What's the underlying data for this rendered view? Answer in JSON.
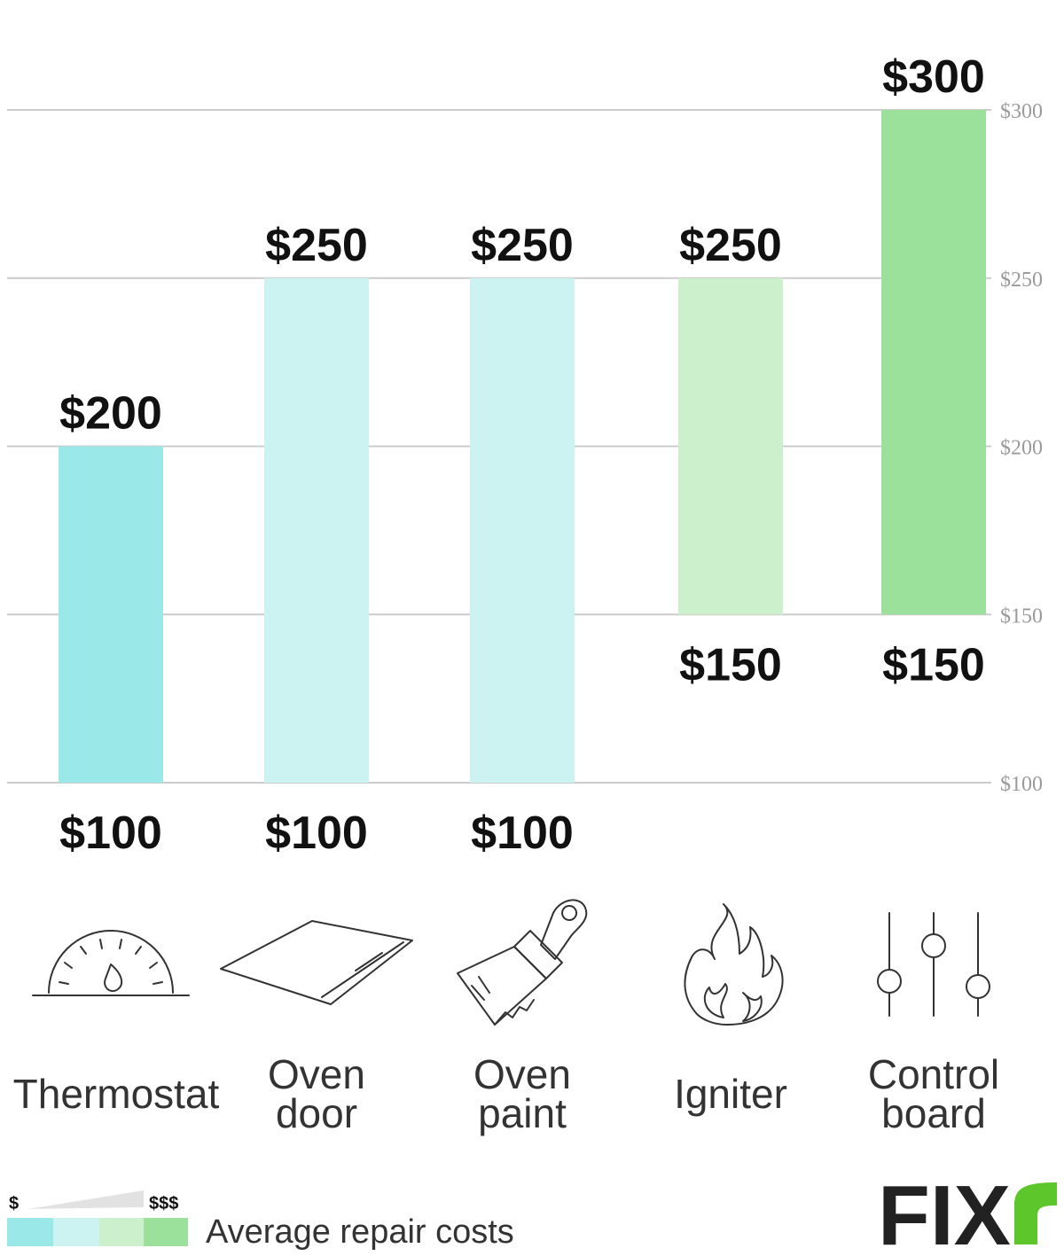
{
  "chart_data": {
    "type": "bar",
    "title": "",
    "xlabel": "",
    "ylabel": "",
    "ylim": [
      100,
      300
    ],
    "y_ticks": [
      "$100",
      "$150",
      "$200",
      "$250",
      "$300"
    ],
    "y_tick_values": [
      100,
      150,
      200,
      250,
      300
    ],
    "grid": true,
    "categories": [
      {
        "label_lines": [
          "Thermostat"
        ],
        "low": 100,
        "high": 200,
        "low_label": "$100",
        "high_label": "$200",
        "color": "#9be8e8",
        "icon": "thermostat-gauge-icon"
      },
      {
        "label_lines": [
          "Oven",
          "door"
        ],
        "low": 100,
        "high": 250,
        "low_label": "$100",
        "high_label": "$250",
        "color": "#ccf2f2",
        "icon": "oven-door-icon"
      },
      {
        "label_lines": [
          "Oven",
          "paint"
        ],
        "low": 100,
        "high": 250,
        "low_label": "$100",
        "high_label": "$250",
        "color": "#ccf2f2",
        "icon": "paintbrush-icon"
      },
      {
        "label_lines": [
          "Igniter"
        ],
        "low": 150,
        "high": 250,
        "low_label": "$150",
        "high_label": "$250",
        "color": "#ccefcc",
        "icon": "flame-icon"
      },
      {
        "label_lines": [
          "Control",
          "board"
        ],
        "low": 150,
        "high": 300,
        "low_label": "$150",
        "high_label": "$300",
        "color": "#9be09b",
        "icon": "sliders-icon"
      }
    ]
  },
  "legend": {
    "low_symbol": "$",
    "high_symbol": "$$$",
    "text": "Average repair costs",
    "colors": [
      "#9be8e8",
      "#ccf2f2",
      "#ccefcc",
      "#9be09b"
    ]
  },
  "brand": {
    "name": "FIX",
    "accent_color": "#5cc62a"
  }
}
